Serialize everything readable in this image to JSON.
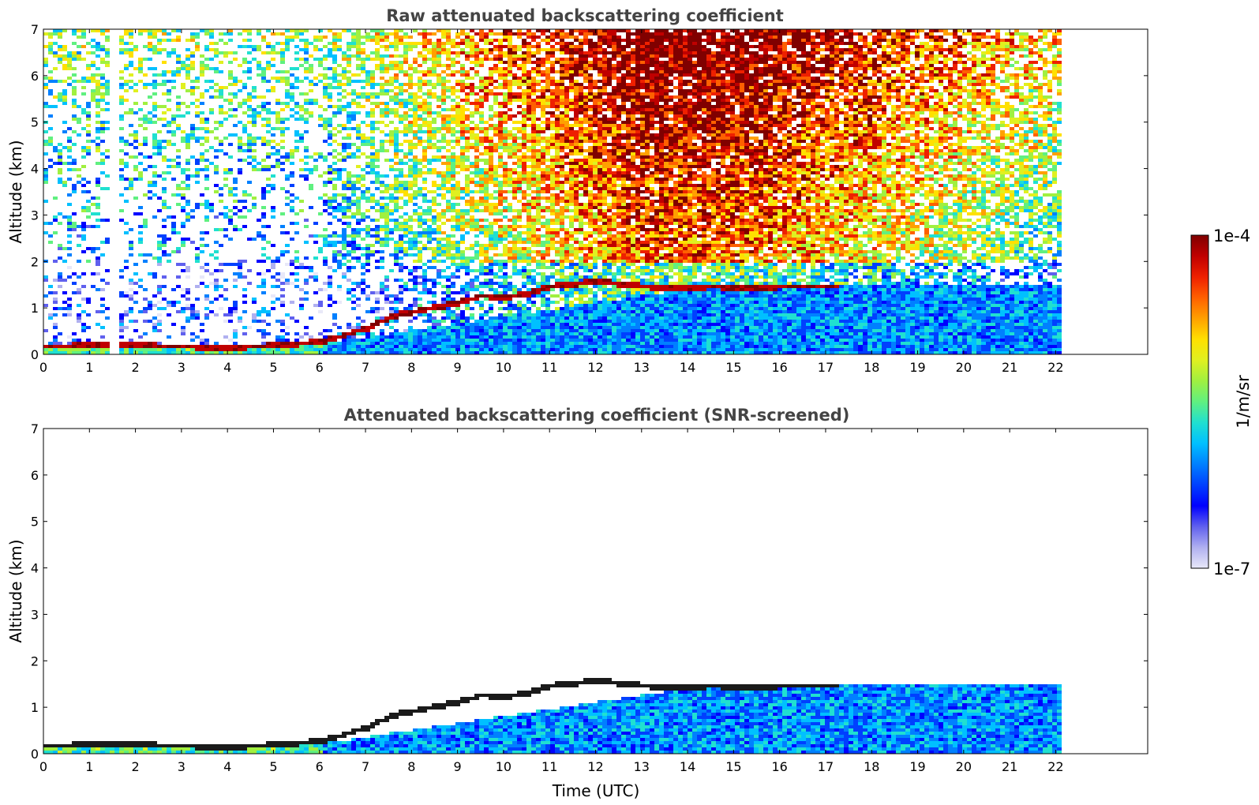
{
  "chart_data": [
    {
      "type": "heatmap",
      "title": "Raw attenuated backscattering coefficient",
      "xlabel": "",
      "ylabel": "Altitude (km)",
      "xlim": [
        0,
        24
      ],
      "ylim": [
        0,
        7
      ],
      "x_ticks": [
        0,
        1,
        2,
        3,
        4,
        5,
        6,
        7,
        8,
        9,
        10,
        11,
        12,
        13,
        14,
        15,
        16,
        17,
        18,
        19,
        20,
        21,
        22
      ],
      "y_ticks": [
        0,
        1,
        2,
        3,
        4,
        5,
        6,
        7
      ],
      "data_time_range": [
        0,
        22.1
      ],
      "screened": false,
      "layer_height_km": [
        [
          0,
          0.2
        ],
        [
          1,
          0.22
        ],
        [
          2,
          0.22
        ],
        [
          3,
          0.2
        ],
        [
          4,
          0.18
        ],
        [
          5,
          0.22
        ],
        [
          6,
          0.3
        ],
        [
          6.5,
          0.45
        ],
        [
          7,
          0.6
        ],
        [
          7.5,
          0.85
        ],
        [
          8,
          0.95
        ],
        [
          8.5,
          1.05
        ],
        [
          9,
          1.15
        ],
        [
          9.5,
          1.3
        ],
        [
          10,
          1.25
        ],
        [
          10.5,
          1.35
        ],
        [
          11,
          1.5
        ],
        [
          11.5,
          1.55
        ],
        [
          12,
          1.6
        ],
        [
          12.5,
          1.55
        ],
        [
          13,
          1.5
        ],
        [
          13.5,
          1.45
        ],
        [
          14,
          1.45
        ],
        [
          14.5,
          1.5
        ],
        [
          15,
          1.45
        ],
        [
          15.5,
          1.45
        ],
        [
          16,
          1.5
        ],
        [
          16.5,
          1.5
        ],
        [
          17,
          1.5
        ]
      ]
    },
    {
      "type": "heatmap",
      "title": "Attenuated backscattering coefficient (SNR-screened)",
      "xlabel": "Time (UTC)",
      "ylabel": "Altitude (km)",
      "xlim": [
        0,
        24
      ],
      "ylim": [
        0,
        7
      ],
      "x_ticks": [
        0,
        1,
        2,
        3,
        4,
        5,
        6,
        7,
        8,
        9,
        10,
        11,
        12,
        13,
        14,
        15,
        16,
        17,
        18,
        19,
        20,
        21,
        22
      ],
      "y_ticks": [
        0,
        1,
        2,
        3,
        4,
        5,
        6,
        7
      ],
      "data_time_range": [
        0,
        22.1
      ],
      "screened": true,
      "layer_height_km": [
        [
          0,
          0.2
        ],
        [
          1,
          0.22
        ],
        [
          2,
          0.22
        ],
        [
          3,
          0.2
        ],
        [
          4,
          0.18
        ],
        [
          5,
          0.22
        ],
        [
          6,
          0.3
        ],
        [
          6.5,
          0.45
        ],
        [
          7,
          0.6
        ],
        [
          7.5,
          0.85
        ],
        [
          8,
          0.95
        ],
        [
          8.5,
          1.05
        ],
        [
          9,
          1.15
        ],
        [
          9.5,
          1.3
        ],
        [
          10,
          1.25
        ],
        [
          10.5,
          1.35
        ],
        [
          11,
          1.5
        ],
        [
          11.5,
          1.55
        ],
        [
          12,
          1.6
        ],
        [
          12.5,
          1.55
        ],
        [
          13,
          1.5
        ],
        [
          13.5,
          1.45
        ],
        [
          14,
          1.45
        ],
        [
          14.5,
          1.5
        ],
        [
          15,
          1.45
        ],
        [
          15.5,
          1.45
        ],
        [
          16,
          1.5
        ],
        [
          16.5,
          1.5
        ],
        [
          17,
          1.5
        ]
      ]
    }
  ],
  "colorbar": {
    "max_label": "1e-4",
    "min_label": "1e-7",
    "unit_label": "1/m/sr",
    "scale": "log",
    "colors": [
      "#e8e8f8",
      "#b0b0f0",
      "#6060ee",
      "#0000ff",
      "#0040ff",
      "#0080ff",
      "#00c0ff",
      "#20e0d0",
      "#60f080",
      "#a0f040",
      "#e0f020",
      "#ffe000",
      "#ffa000",
      "#ff6000",
      "#ee2000",
      "#c00000",
      "#800000"
    ]
  }
}
